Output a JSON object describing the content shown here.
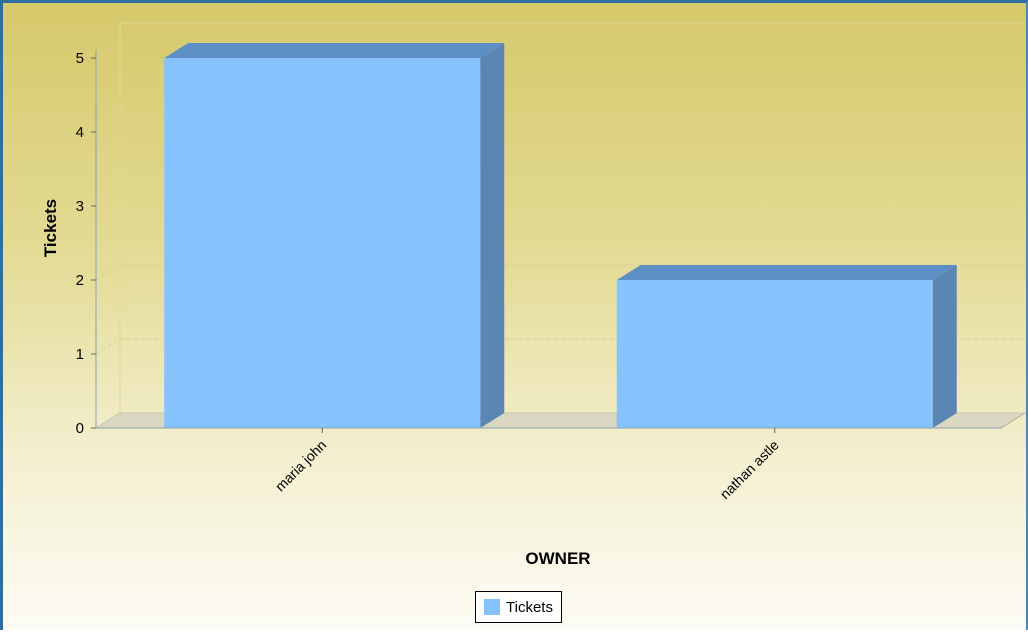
{
  "chart_data": {
    "type": "bar",
    "categories": [
      "maria john",
      "nathan astle"
    ],
    "series": [
      {
        "name": "Tickets",
        "values": [
          5,
          2
        ]
      }
    ],
    "xlabel": "OWNER",
    "ylabel": "Tickets",
    "ylim": [
      0,
      5
    ],
    "yticks": [
      0,
      1,
      2,
      3,
      4,
      5
    ],
    "grid": true,
    "legend_position": "bottom-center",
    "three_d": true
  },
  "colors": {
    "bar_front": "#86c2fb",
    "bar_top": "#5d8fc4",
    "bar_side": "#5b86b3",
    "gridline": "#d8cf8c",
    "floor": "#d9d6c2"
  }
}
